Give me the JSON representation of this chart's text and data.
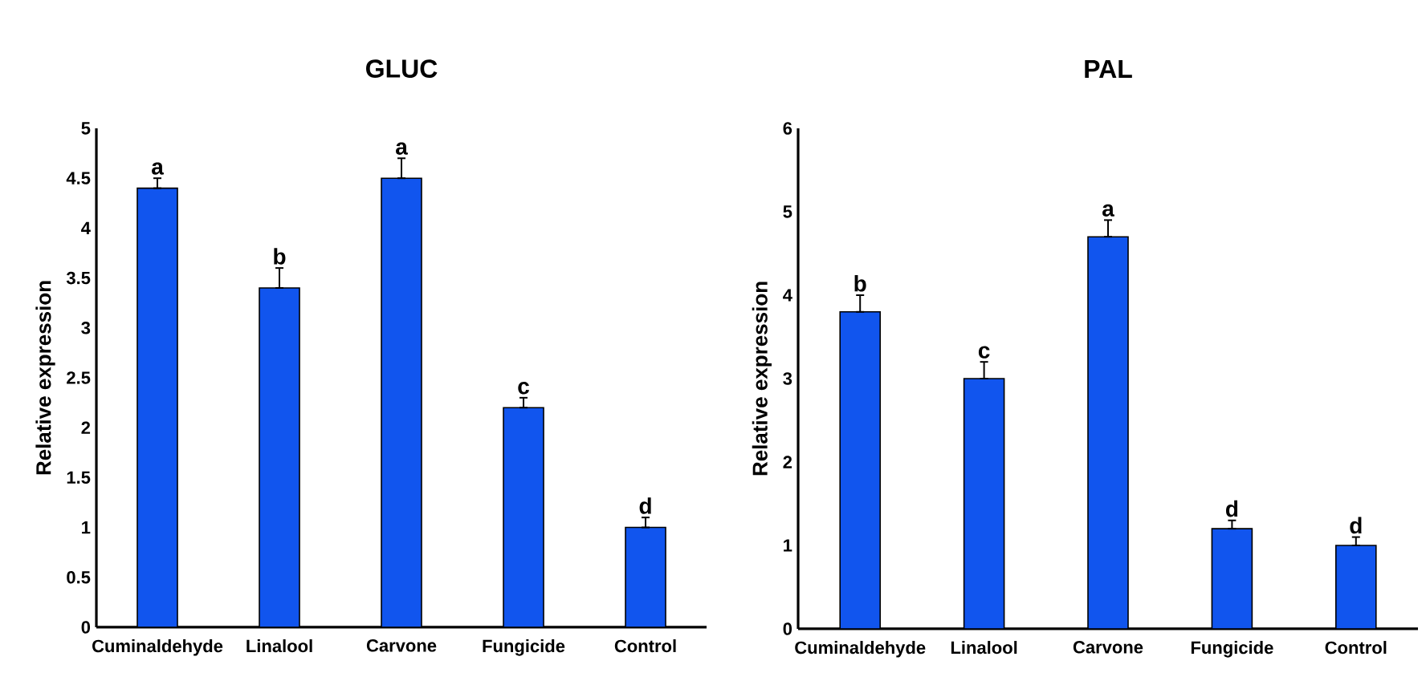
{
  "chart_data": [
    {
      "type": "bar",
      "title": "GLUC",
      "ylabel": "Relative expression",
      "categories": [
        "Cuminaldehyde",
        "Linalool",
        "Carvone",
        "Fungicide",
        "Control"
      ],
      "values": [
        4.4,
        3.4,
        4.5,
        2.2,
        1.0
      ],
      "errors": [
        [
          4.4,
          4.5
        ],
        [
          3.4,
          3.6
        ],
        [
          4.5,
          4.7
        ],
        [
          2.2,
          2.3
        ],
        [
          1.0,
          1.1
        ]
      ],
      "color": "#1155ee",
      "ylim": [
        0,
        5
      ],
      "yticks": [
        0,
        0.5,
        1,
        1.5,
        2,
        2.5,
        3,
        3.5,
        4,
        4.5,
        5
      ],
      "annotations": [
        {
          "text": "a",
          "x": "Cuminaldehyde",
          "y": 4.5
        },
        {
          "text": "b",
          "x": "Linalool",
          "y": 3.6
        },
        {
          "text": "a",
          "x": "Carvone",
          "y": 4.7
        },
        {
          "text": "c",
          "x": "Fungicide",
          "y": 2.3
        },
        {
          "text": "d",
          "x": "Control",
          "y": 1.1
        }
      ]
    },
    {
      "type": "bar",
      "title": "PAL",
      "ylabel": "Relative expression",
      "categories": [
        "Cuminaldehyde",
        "Linalool",
        "Carvone",
        "Fungicide",
        "Control"
      ],
      "values": [
        3.8,
        3.0,
        4.7,
        1.2,
        1.0
      ],
      "errors": [
        [
          3.8,
          4.0
        ],
        [
          3.0,
          3.2
        ],
        [
          4.7,
          4.9
        ],
        [
          1.2,
          1.3
        ],
        [
          1.0,
          1.1
        ]
      ],
      "color": "#1155ee",
      "ylim": [
        0,
        6
      ],
      "yticks": [
        0,
        1,
        2,
        3,
        4,
        5,
        6
      ],
      "annotations": [
        {
          "text": "b",
          "x": "Cuminaldehyde",
          "y": 4.0
        },
        {
          "text": "c",
          "x": "Linalool",
          "y": 3.2
        },
        {
          "text": "a",
          "x": "Carvone",
          "y": 4.9
        },
        {
          "text": "d",
          "x": "Fungicide",
          "y": 1.3
        },
        {
          "text": "d",
          "x": "Control",
          "y": 1.1
        }
      ]
    }
  ]
}
